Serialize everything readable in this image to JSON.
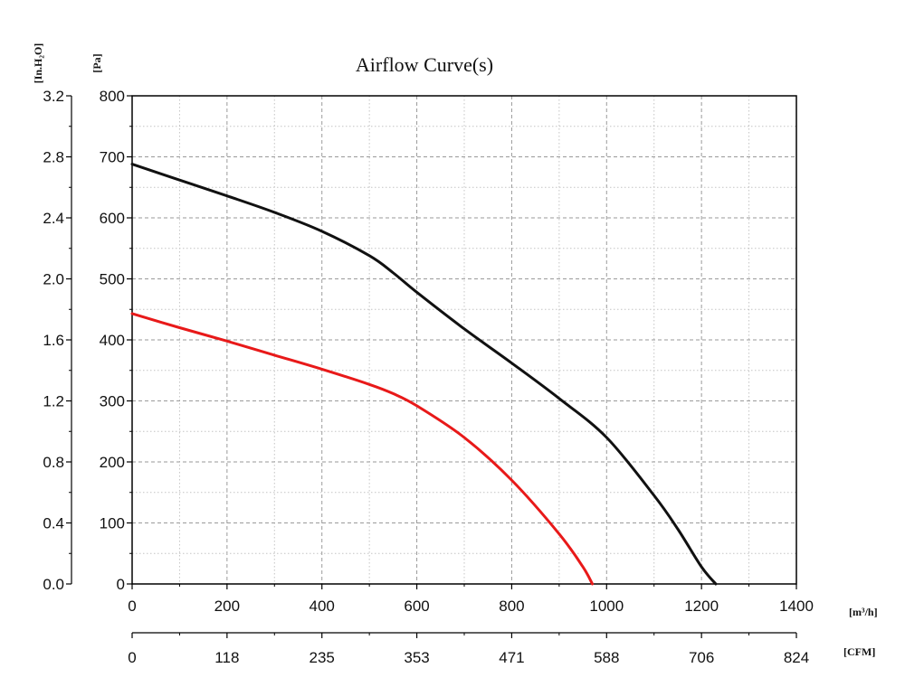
{
  "chart_data": {
    "type": "line",
    "title": "Airflow Curve(s)",
    "x_unit": "[m³/h]",
    "x2_unit": "[CFM]",
    "y_unit": "[Pa]",
    "y2_unit": "[In.H₂O]",
    "xlim": [
      0,
      1400
    ],
    "ylim": [
      0,
      800
    ],
    "y2lim": [
      0,
      3.2
    ],
    "x_ticks": [
      0,
      200,
      400,
      600,
      800,
      1000,
      1200,
      1400
    ],
    "x2_ticks": [
      "0",
      "118",
      "235",
      "353",
      "471",
      "588",
      "706",
      "824"
    ],
    "y_ticks": [
      0,
      100,
      200,
      300,
      400,
      500,
      600,
      700,
      800
    ],
    "y2_ticks": [
      "0.0",
      "0.4",
      "0.8",
      "1.2",
      "1.6",
      "2.0",
      "2.4",
      "2.8",
      "3.2"
    ],
    "grid": true,
    "series": [
      {
        "color": "#111111",
        "x": [
          0,
          100,
          200,
          300,
          400,
          500,
          550,
          600,
          700,
          800,
          900,
          1000,
          1100,
          1150,
          1200,
          1230
        ],
        "y": [
          688,
          662,
          636,
          609,
          578,
          538,
          510,
          478,
          418,
          362,
          304,
          240,
          145,
          90,
          28,
          0
        ]
      },
      {
        "color": "#e81919",
        "x": [
          0,
          100,
          200,
          300,
          400,
          500,
          550,
          600,
          700,
          800,
          900,
          950,
          970
        ],
        "y": [
          443,
          420,
          398,
          375,
          352,
          327,
          312,
          292,
          240,
          170,
          82,
          28,
          0
        ]
      }
    ]
  }
}
